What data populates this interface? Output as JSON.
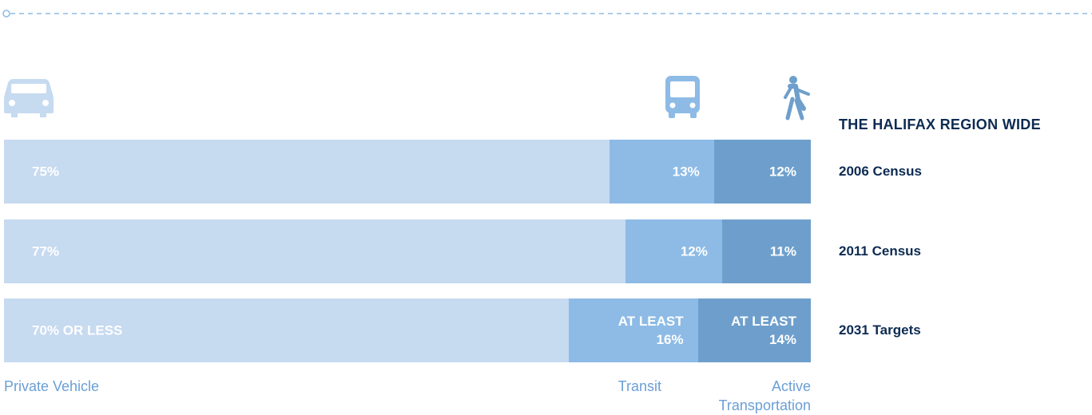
{
  "chart_data": {
    "type": "stacked-bar",
    "title": "THE HALIFAX REGION WIDE",
    "categories": [
      "2006 Census",
      "2011 Census",
      "2031 Targets"
    ],
    "xlim": [
      0,
      100
    ],
    "series": [
      {
        "name": "Private Vehicle",
        "color": "#c6daf0",
        "values": [
          75,
          77,
          70
        ],
        "value_labels": [
          "75%",
          "77%",
          "70% OR LESS"
        ]
      },
      {
        "name": "Transit",
        "color": "#8dbbe6",
        "values": [
          13,
          12,
          16
        ],
        "value_labels": [
          "13%",
          "12%",
          "AT LEAST 16%"
        ]
      },
      {
        "name": "Active Transportation",
        "color": "#6e9fcc",
        "values": [
          12,
          11,
          14
        ],
        "value_labels": [
          "12%",
          "11%",
          "AT LEAST 14%"
        ]
      }
    ]
  }
}
